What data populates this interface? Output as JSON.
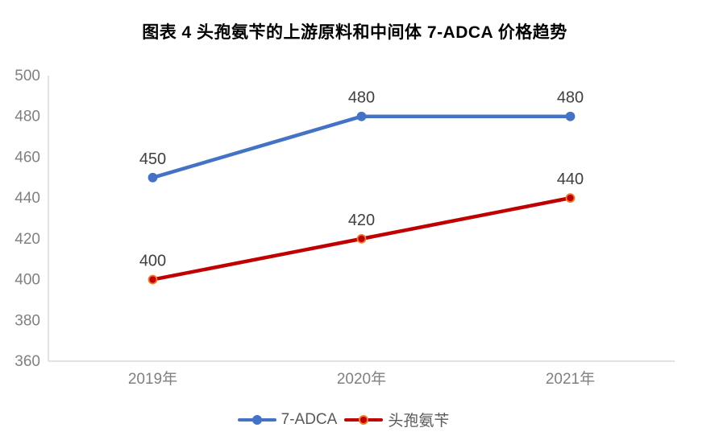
{
  "title": "图表 4 头孢氨苄的上游原料和中间体 7-ADCA 价格趋势",
  "chart_data": {
    "type": "line",
    "categories": [
      "2019年",
      "2020年",
      "2021年"
    ],
    "series": [
      {
        "name": "7-ADCA",
        "values": [
          450,
          480,
          480
        ],
        "color": "#4472C4",
        "marker": "circle",
        "marker_fill": "#4472C4",
        "marker_edge": "#4472C4"
      },
      {
        "name": "头孢氨苄",
        "values": [
          400,
          420,
          440
        ],
        "color": "#C00000",
        "marker": "circle",
        "marker_fill": "#C00000",
        "marker_edge": "#ED7D31"
      }
    ],
    "ylim": [
      360,
      500
    ],
    "yticks": [
      360,
      380,
      400,
      420,
      440,
      460,
      480,
      500
    ],
    "xlabel": "",
    "ylabel": "",
    "grid": false,
    "data_labels": true,
    "legend_position": "bottom",
    "colors": {
      "axis_line": "#D9D9D9",
      "tick_label": "#808080",
      "data_label": "#404040",
      "legend_label": "#595959",
      "title": "#000000",
      "background": "#FFFFFF"
    }
  }
}
